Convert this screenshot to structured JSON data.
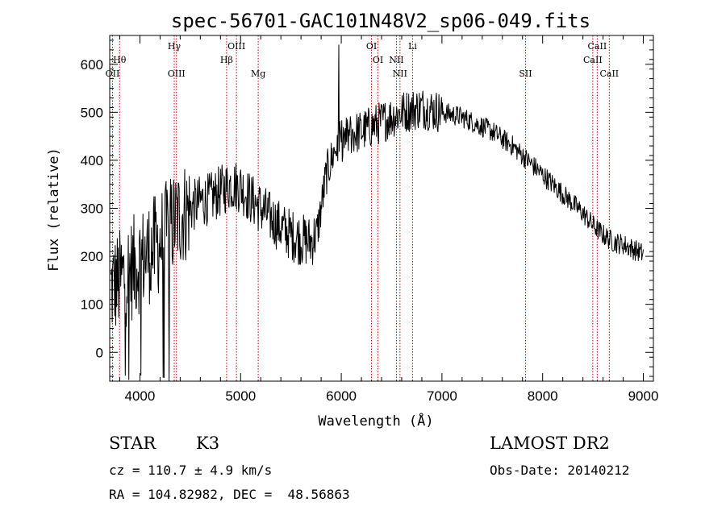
{
  "chart_data": {
    "type": "line",
    "title": "spec-56701-GAC101N48V2_sp06-049.fits",
    "xlabel": "Wavelength (Å)",
    "ylabel": "Flux (relative)",
    "xlim": [
      3700,
      9100
    ],
    "ylim": [
      -60,
      660
    ],
    "x_ticks": [
      4000,
      5000,
      6000,
      7000,
      8000,
      9000
    ],
    "y_ticks": [
      0,
      100,
      200,
      300,
      400,
      500,
      600
    ],
    "x_tick_labels": [
      "4000",
      "5000",
      "6000",
      "7000",
      "8000",
      "9000"
    ],
    "y_tick_labels": [
      "0",
      "100",
      "200",
      "300",
      "400",
      "500",
      "600"
    ],
    "grid": false,
    "line_color": "#000000",
    "marker_line_color": "#cc0000",
    "spectrum_envelope": {
      "x": [
        3700,
        3800,
        3900,
        4000,
        4100,
        4200,
        4300,
        4400,
        4500,
        4600,
        4700,
        4800,
        4900,
        5000,
        5100,
        5200,
        5300,
        5400,
        5500,
        5600,
        5700,
        5760,
        5800,
        5850,
        5900,
        5950,
        6000,
        6100,
        6200,
        6300,
        6400,
        6500,
        6600,
        6700,
        6800,
        6900,
        7000,
        7100,
        7200,
        7300,
        7400,
        7500,
        7600,
        7700,
        7800,
        7900,
        8000,
        8100,
        8200,
        8300,
        8400,
        8500,
        8600,
        8700,
        8800,
        8900,
        9000
      ],
      "y": [
        130,
        150,
        170,
        190,
        210,
        230,
        260,
        285,
        300,
        315,
        320,
        335,
        350,
        345,
        320,
        300,
        280,
        260,
        245,
        235,
        230,
        250,
        300,
        370,
        400,
        430,
        440,
        455,
        460,
        470,
        480,
        490,
        500,
        505,
        510,
        505,
        500,
        495,
        490,
        480,
        470,
        460,
        445,
        430,
        410,
        390,
        370,
        350,
        330,
        310,
        290,
        265,
        245,
        230,
        225,
        215,
        205
      ]
    },
    "line_markers": [
      {
        "label": "Hθ",
        "x": 3798,
        "row": 2
      },
      {
        "label": "OII",
        "x": 3728,
        "row": 3
      },
      {
        "label": "Hγ",
        "x": 4341,
        "row": 1
      },
      {
        "label": "OIII",
        "x": 4363,
        "row": 3
      },
      {
        "label": "Hβ",
        "x": 4861,
        "row": 2
      },
      {
        "label": "OIII",
        "x": 4959,
        "row": 1
      },
      {
        "label": "Mg",
        "x": 5175,
        "row": 3
      },
      {
        "label": "OI",
        "x": 6300,
        "row": 1
      },
      {
        "label": "OI",
        "x": 6364,
        "row": 2
      },
      {
        "label": "NII",
        "x": 6548,
        "row": 2
      },
      {
        "label": "NII",
        "x": 6583,
        "row": 3
      },
      {
        "label": "Li",
        "x": 6708,
        "row": 1
      },
      {
        "label": "SII",
        "x": 7830,
        "row": 3
      },
      {
        "label": "CaII",
        "x": 8498,
        "row": 2
      },
      {
        "label": "CaII",
        "x": 8542,
        "row": 1
      },
      {
        "label": "CaII",
        "x": 8662,
        "row": 3
      }
    ]
  },
  "info": {
    "class_label": "STAR",
    "subclass": "K3",
    "survey": "LAMOST DR2",
    "redshift": "cz = 110.7 ± 4.9 km/s",
    "obs_date": "Obs-Date: 20140212",
    "coords": "RA = 104.82982, DEC =  48.56863"
  }
}
